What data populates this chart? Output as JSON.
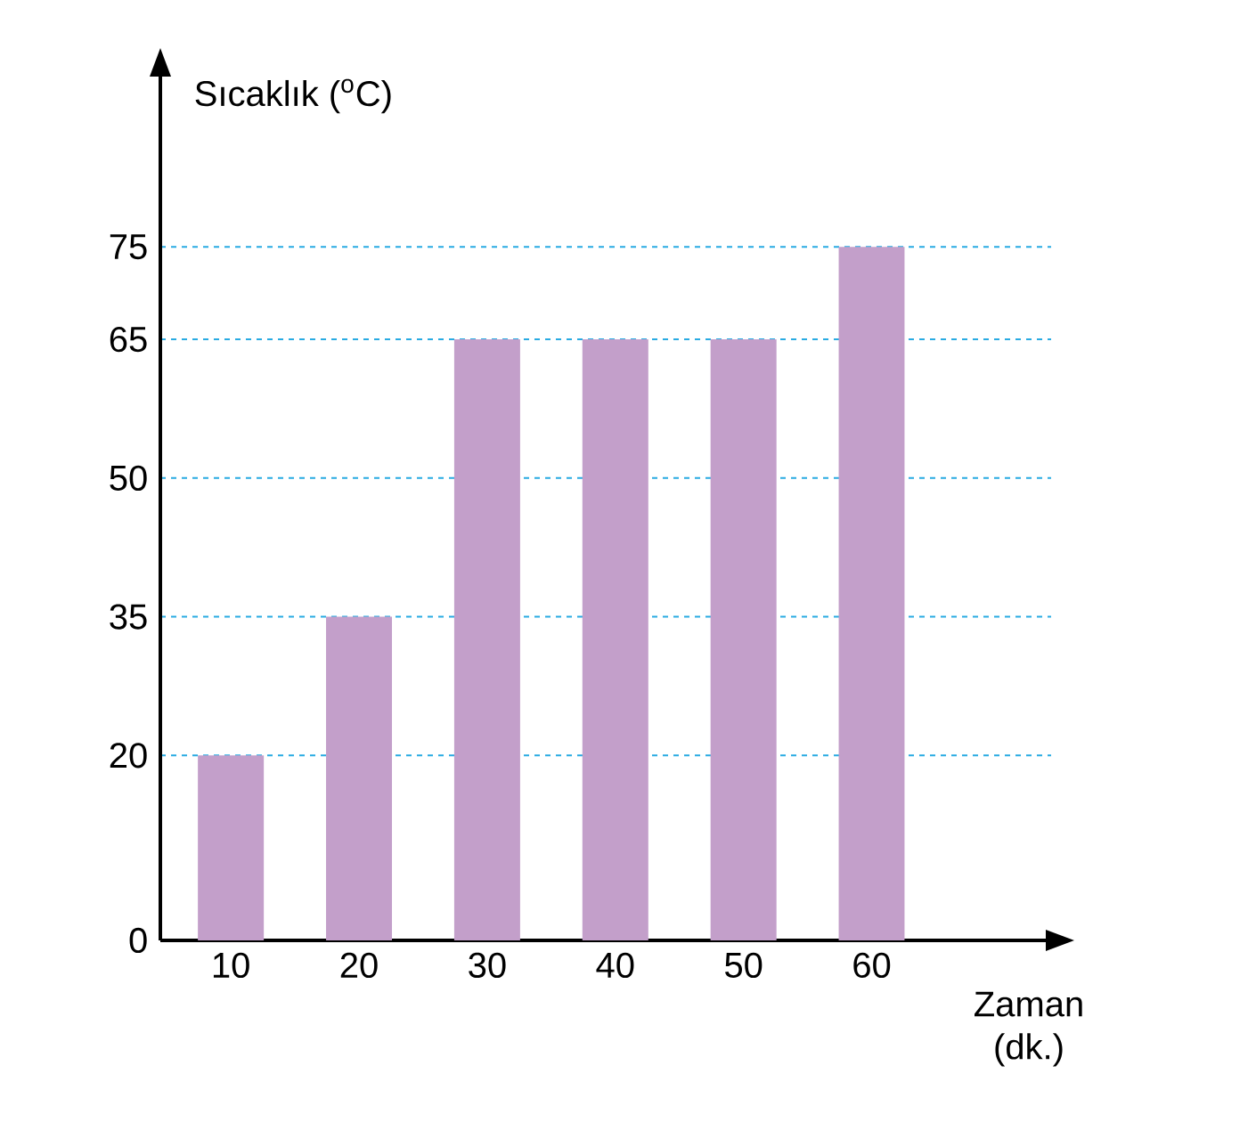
{
  "chart_data": {
    "type": "bar",
    "xlabel": "Zaman (dk.)",
    "ylabel": "Sıcaklık ($^{o}$C)",
    "categories": [
      "10",
      "20",
      "30",
      "40",
      "50",
      "60"
    ],
    "values": [
      20,
      35,
      65,
      65,
      65,
      75
    ],
    "color": "#c39fca",
    "ylim": [
      0,
      94
    ],
    "yticks": [
      0,
      20,
      35,
      50,
      65,
      75
    ],
    "grid": "y"
  }
}
